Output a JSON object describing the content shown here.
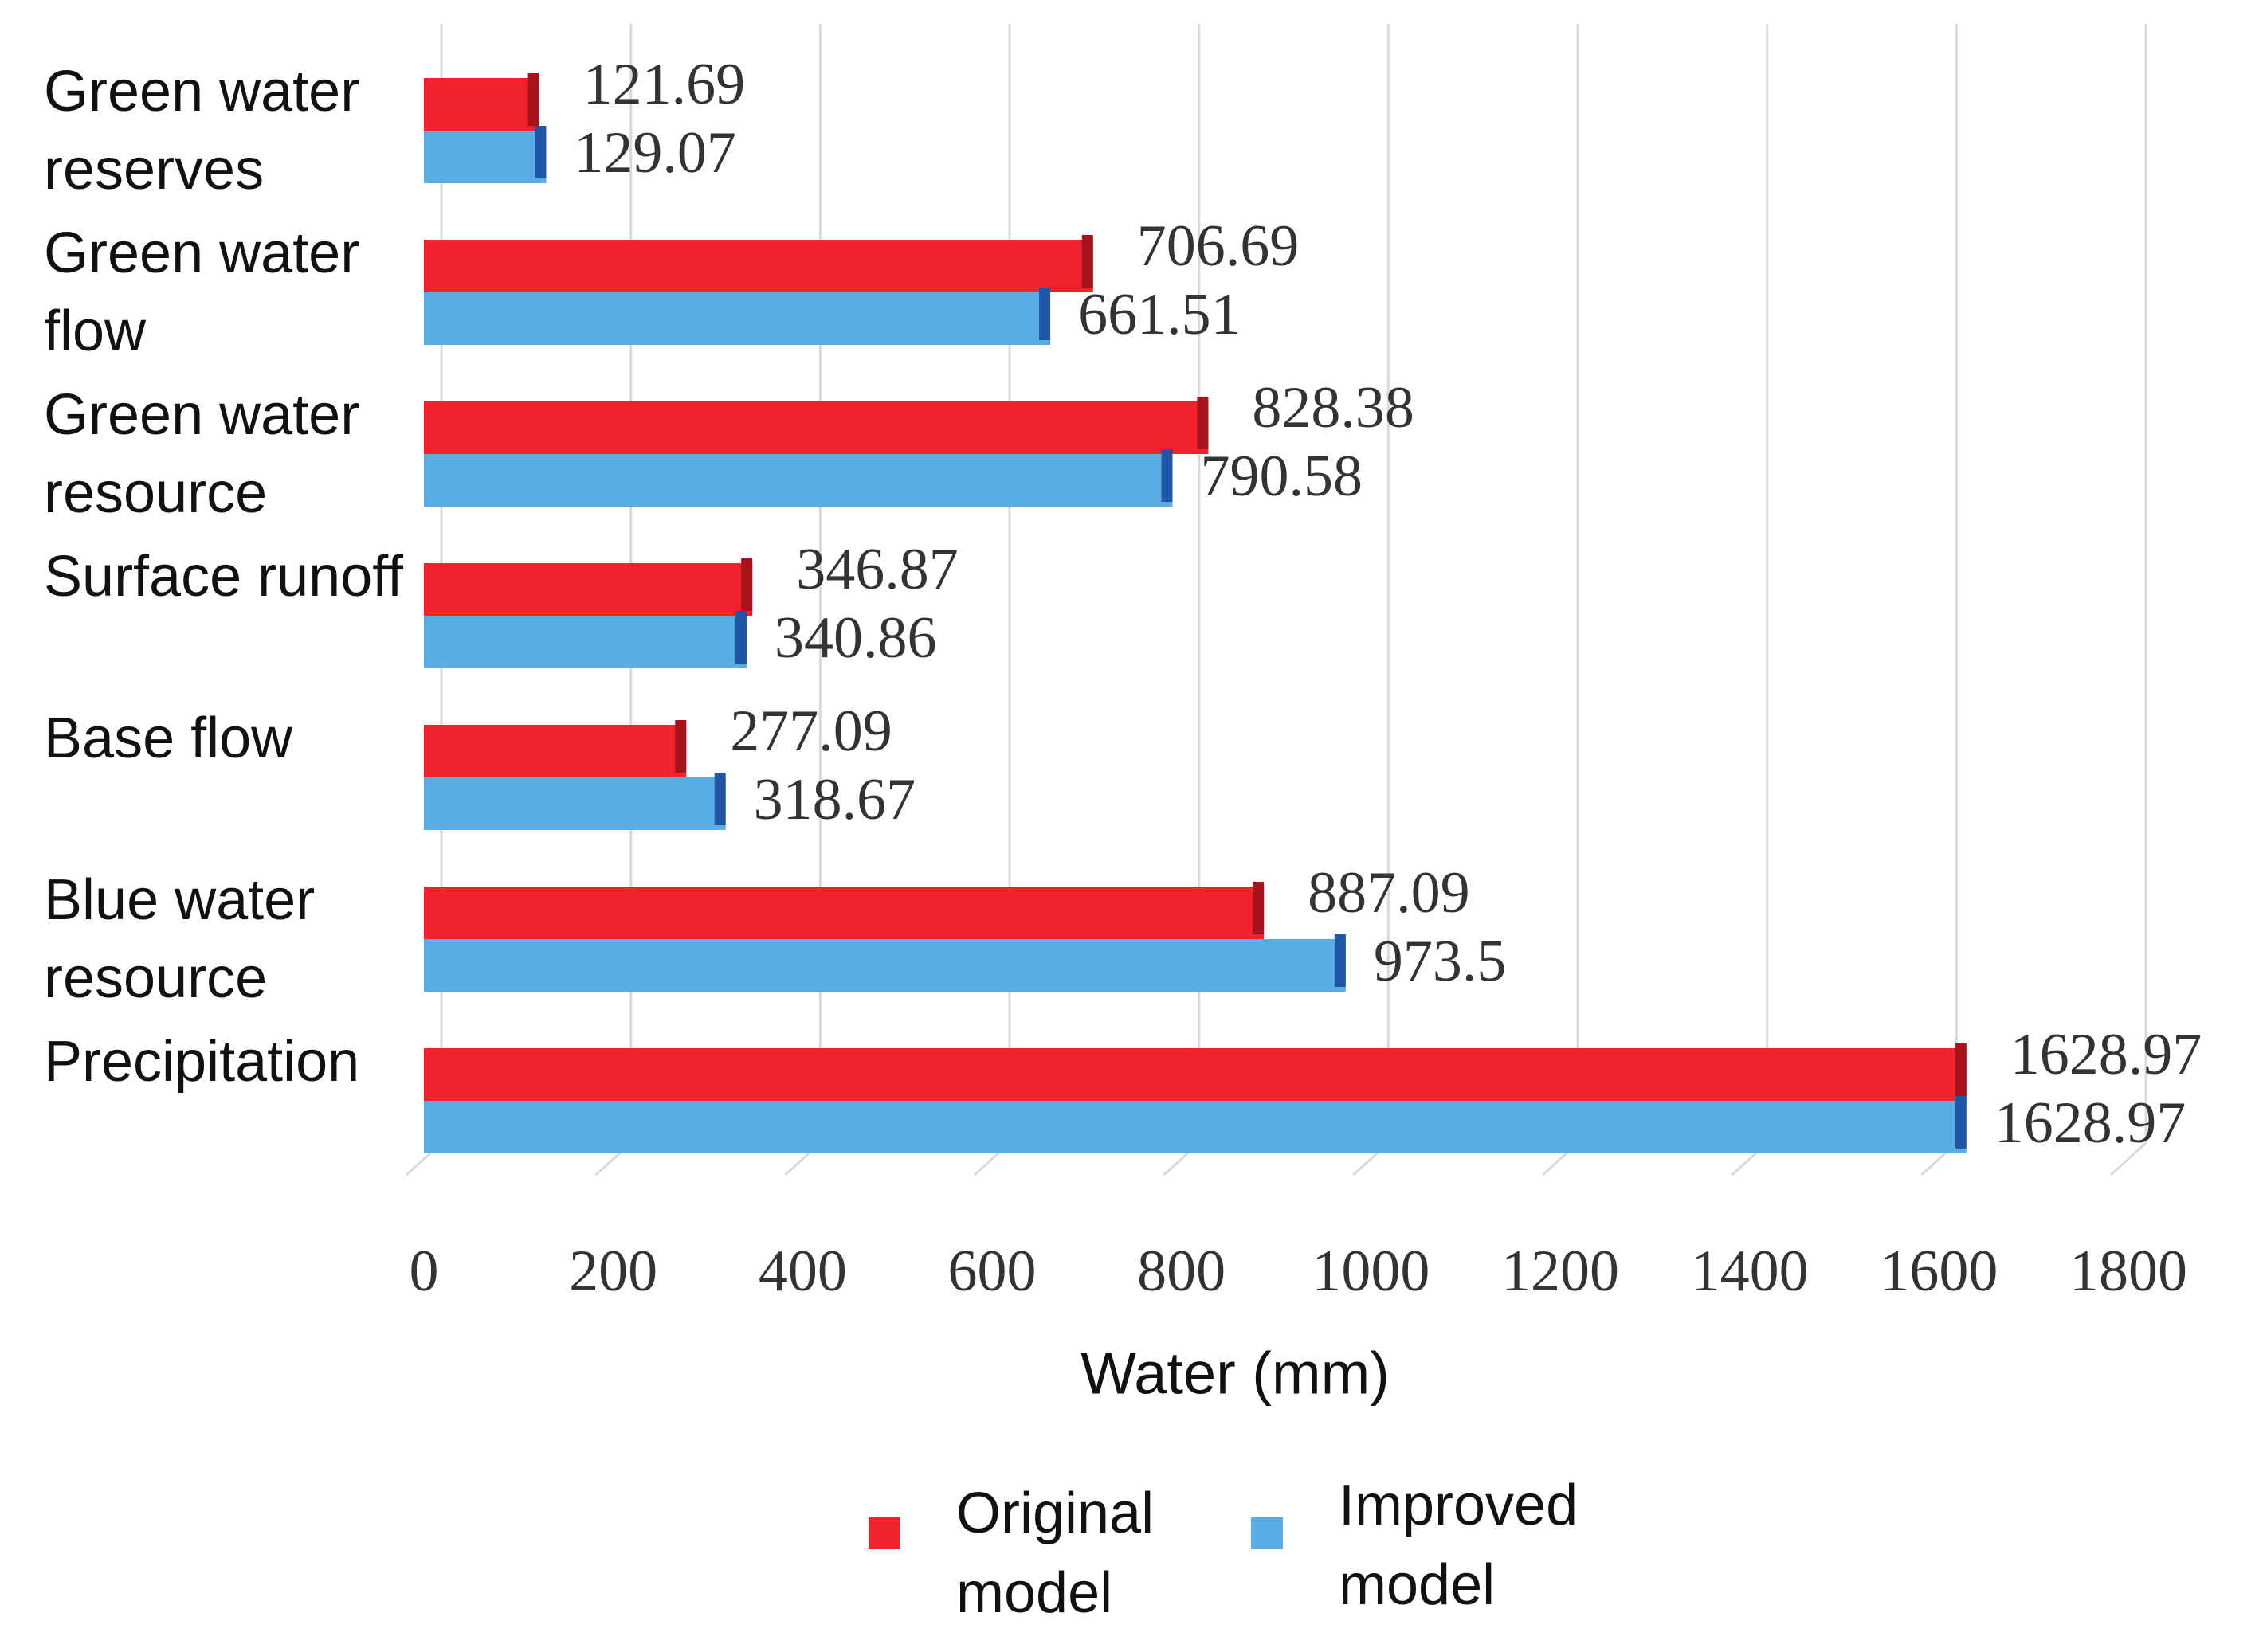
{
  "chart_data": {
    "type": "bar",
    "orientation": "horizontal",
    "categories": [
      "Green water reserves",
      "Green water flow",
      "Green water resource",
      "Surface runoff",
      "Base flow",
      "Blue water resource",
      "Precipitation"
    ],
    "series": [
      {
        "name": "Original model",
        "color": "#f2222c",
        "values": [
          121.69,
          706.69,
          828.38,
          346.87,
          277.09,
          887.09,
          1628.97
        ]
      },
      {
        "name": "Improved model",
        "color": "#5aade2",
        "values": [
          129.07,
          661.51,
          790.58,
          340.86,
          318.67,
          973.5,
          1628.97
        ]
      }
    ],
    "x_label": "Water (mm)",
    "xlim": [
      0,
      1800
    ],
    "xticks": [
      0,
      200,
      400,
      600,
      800,
      1000,
      1200,
      1400,
      1600,
      1800
    ],
    "grid": true,
    "legend": "bottom"
  }
}
